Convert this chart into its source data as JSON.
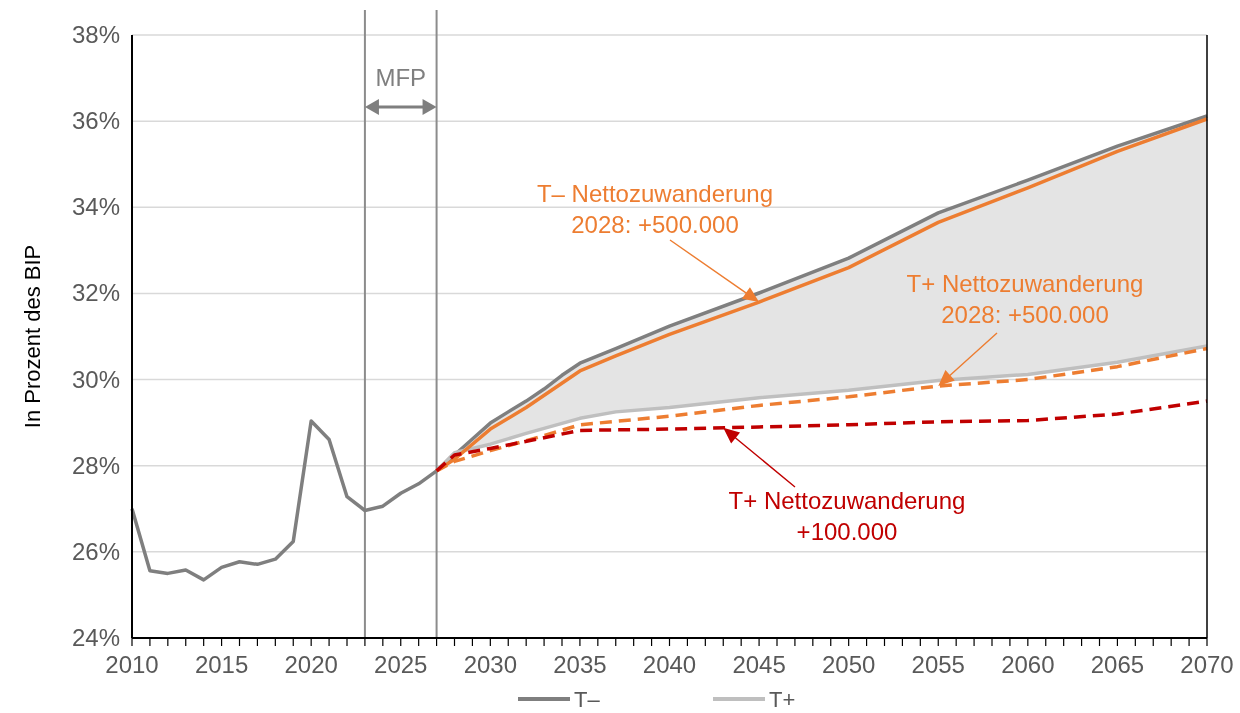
{
  "chart_data": {
    "type": "line",
    "ylabel": "In Prozent des BIP",
    "xlim": [
      2010,
      2070
    ],
    "xticks": [
      2010,
      2015,
      2020,
      2025,
      2030,
      2035,
      2040,
      2045,
      2050,
      2055,
      2060,
      2065,
      2070
    ],
    "ylim": [
      24,
      38
    ],
    "yticks": [
      {
        "value": 24,
        "label": "24%"
      },
      {
        "value": 26,
        "label": "26%"
      },
      {
        "value": 28,
        "label": "28%"
      },
      {
        "value": 30,
        "label": "30%"
      },
      {
        "value": 32,
        "label": "32%"
      },
      {
        "value": 34,
        "label": "34%"
      },
      {
        "value": 36,
        "label": "36%"
      },
      {
        "value": 38,
        "label": "38%"
      }
    ],
    "grid": "y",
    "legend": "bottom",
    "marker": "none",
    "ref_lines": [
      {
        "axis": "x",
        "value": 2023,
        "color": "#8c8c8c"
      },
      {
        "axis": "x",
        "value": 2027,
        "color": "#8c8c8c"
      }
    ],
    "annotations": [
      "MFP",
      {
        "text": "T– Nettozuwanderung\n2028: +500.000",
        "x": 2045,
        "y": 31.8
      },
      {
        "text": "T+ Nettozuwanderung\n2028: +500.000",
        "x": 2055,
        "y": 29.85
      },
      {
        "text": "T+ Nettozuwanderung\n+100.000",
        "x": 2043,
        "y": 28.88
      }
    ],
    "series": [
      {
        "name": "T–",
        "color": "#7f7f7f",
        "line_style": "solid",
        "x": [
          2010,
          2011,
          2012,
          2013,
          2014,
          2015,
          2016,
          2017,
          2018,
          2019,
          2020,
          2021,
          2022,
          2023,
          2024,
          2025,
          2026,
          2027,
          2028,
          2029,
          2030,
          2031,
          2032,
          2033,
          2034,
          2035,
          2037,
          2040,
          2045,
          2050,
          2055,
          2060,
          2065,
          2070
        ],
        "values": [
          27.0,
          25.56,
          25.5,
          25.58,
          25.35,
          25.64,
          25.77,
          25.71,
          25.83,
          26.24,
          29.04,
          28.61,
          27.28,
          26.96,
          27.06,
          27.36,
          27.58,
          27.88,
          28.25,
          28.62,
          28.99,
          29.25,
          29.5,
          29.78,
          30.1,
          30.38,
          30.72,
          31.24,
          32.01,
          32.82,
          33.87,
          34.63,
          35.42,
          36.12
        ]
      },
      {
        "name": "T+",
        "color": "#bfbfbf",
        "line_style": "solid",
        "x": [
          2027,
          2028,
          2030,
          2032,
          2035,
          2037,
          2040,
          2045,
          2050,
          2055,
          2060,
          2065,
          2070
        ],
        "values": [
          27.88,
          28.3,
          28.5,
          28.75,
          29.1,
          29.25,
          29.35,
          29.58,
          29.75,
          29.98,
          30.12,
          30.4,
          30.78
        ],
        "lower": [
          27.88,
          28.3,
          28.5,
          28.75,
          29.1,
          29.25,
          29.35,
          29.58,
          29.75,
          29.98,
          30.12,
          30.4,
          30.78
        ],
        "upper": [
          27.88,
          28.25,
          28.99,
          29.5,
          30.38,
          30.72,
          31.24,
          32.01,
          32.82,
          33.87,
          34.63,
          35.42,
          36.12
        ]
      },
      {
        "color": "#ed7d31",
        "line_style": "solid",
        "x": [
          2027,
          2028,
          2030,
          2032,
          2035,
          2037,
          2040,
          2045,
          2050,
          2055,
          2060,
          2065,
          2070
        ],
        "values": [
          27.88,
          28.15,
          28.85,
          29.35,
          30.2,
          30.55,
          31.05,
          31.8,
          32.6,
          33.65,
          34.45,
          35.3,
          36.05
        ]
      },
      {
        "color": "#ed7d31",
        "line_style": "dashed",
        "x": [
          2027,
          2028,
          2030,
          2033,
          2035,
          2040,
          2045,
          2050,
          2055,
          2060,
          2065,
          2070
        ],
        "values": [
          27.88,
          28.1,
          28.35,
          28.7,
          28.95,
          29.15,
          29.4,
          29.6,
          29.85,
          30.0,
          30.3,
          30.72
        ]
      },
      {
        "color": "#c00000",
        "line_style": "dashed",
        "x": [
          2027,
          2028,
          2030,
          2033,
          2035,
          2040,
          2045,
          2050,
          2055,
          2060,
          2065,
          2070
        ],
        "values": [
          27.88,
          28.25,
          28.4,
          28.65,
          28.82,
          28.85,
          28.9,
          28.95,
          29.02,
          29.05,
          29.2,
          29.5
        ]
      }
    ]
  }
}
